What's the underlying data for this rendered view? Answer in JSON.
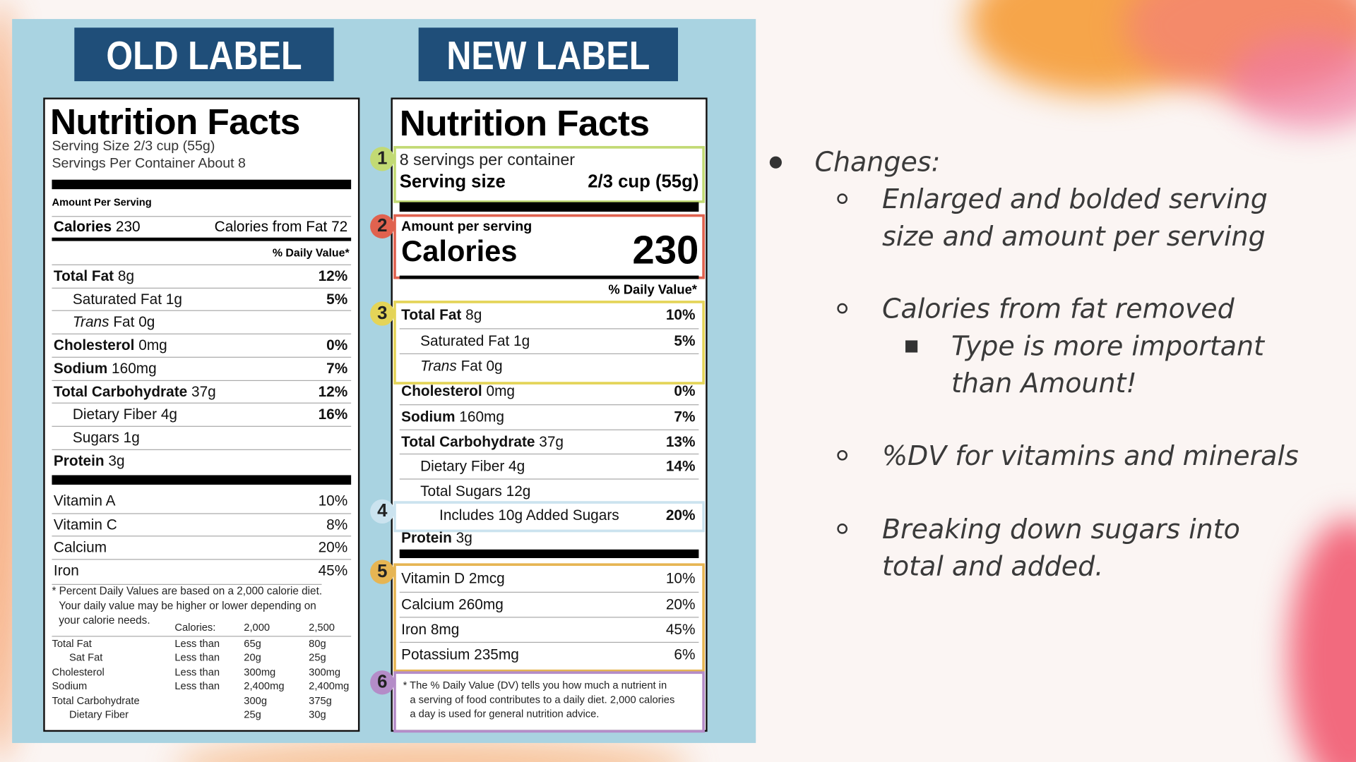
{
  "old_label": {
    "heading": "OLD LABEL",
    "title": "Nutrition Facts",
    "serving_size": "Serving Size 2/3 cup (55g)",
    "servings": "Servings Per Container About 8",
    "amount_per_serving": "Amount Per Serving",
    "calories_name": "Calories",
    "calories_value": "230",
    "calories_from_fat": "Calories from Fat 72",
    "dv_header": "% Daily Value*",
    "rows": [
      {
        "name": "Total Fat",
        "amount": "8g",
        "dv": "12%",
        "style": "bold"
      },
      {
        "name": "Saturated Fat",
        "amount": "1g",
        "dv": "5%",
        "style": "indent"
      },
      {
        "italic": "Trans",
        "name": "Fat",
        "amount": "0g",
        "style": "indent"
      },
      {
        "name": "Cholesterol",
        "amount": "0mg",
        "dv": "0%",
        "style": "bold"
      },
      {
        "name": "Sodium",
        "amount": "160mg",
        "dv": "7%",
        "style": "bold"
      },
      {
        "name": "Total Carbohydrate",
        "amount": "37g",
        "dv": "12%",
        "style": "bold"
      },
      {
        "name": "Dietary Fiber",
        "amount": "4g",
        "dv": "16%",
        "style": "indent"
      },
      {
        "name": "Sugars",
        "amount": "1g",
        "style": "indent"
      },
      {
        "name": "Protein",
        "amount": "3g",
        "style": "bold"
      }
    ],
    "vitamins": [
      {
        "name": "Vitamin A",
        "dv": "10%",
        "style": "plain"
      },
      {
        "name": "Vitamin C",
        "dv": "8%",
        "style": "plain"
      },
      {
        "name": "Calcium",
        "dv": "20%",
        "style": "plain"
      },
      {
        "name": "Iron",
        "dv": "45%",
        "style": "plain"
      }
    ],
    "footnote": [
      "* Percent Daily Values are based on a 2,000 calorie diet.",
      "Your daily value may be higher or lower depending on",
      "your calorie needs."
    ],
    "table": {
      "header": [
        "Calories:",
        "2,000",
        "2,500"
      ],
      "rows": [
        {
          "name": "Total Fat",
          "limit": "Less than",
          "v2000": "65g",
          "v2500": "80g"
        },
        {
          "name": "Sat Fat",
          "limit": "Less than",
          "v2000": "20g",
          "v2500": "25g",
          "indent": true
        },
        {
          "name": "Cholesterol",
          "limit": "Less than",
          "v2000": "300mg",
          "v2500": "300mg"
        },
        {
          "name": "Sodium",
          "limit": "Less than",
          "v2000": "2,400mg",
          "v2500": "2,400mg"
        },
        {
          "name": "Total Carbohydrate",
          "v2000": "300g",
          "v2500": "375g"
        },
        {
          "name": "Dietary Fiber",
          "v2000": "25g",
          "v2500": "30g",
          "indent": true
        }
      ]
    }
  },
  "new_label": {
    "heading": "NEW LABEL",
    "title": "Nutrition Facts",
    "dv_header": "% Daily Value*",
    "sections": [
      {
        "badge": "1",
        "color": "#c2da74",
        "servings": "8 servings per container",
        "serving_size_label": "Serving size",
        "serving_size_value": "2/3 cup (55g)"
      },
      {
        "badge": "2",
        "color": "#e0624f",
        "amount_per_serving": "Amount per serving",
        "calories_name": "Calories",
        "calories_value": "230"
      },
      {
        "badge": "3",
        "color": "#e4d458",
        "rows": [
          {
            "name": "Total Fat",
            "amount": "8g",
            "dv": "10%",
            "style": "bold"
          },
          {
            "name": "Saturated Fat",
            "amount": "1g",
            "dv": "5%",
            "style": "indent"
          },
          {
            "italic": "Trans",
            "name": "Fat",
            "amount": "0g",
            "style": "indent"
          }
        ]
      },
      {
        "badge": "4",
        "color": "#cbe3ef",
        "rows": [
          {
            "name": "Includes 10g Added Sugars",
            "dv": "20%",
            "style": "indent2"
          }
        ]
      },
      {
        "badge": "5",
        "color": "#e6b553",
        "rows": [
          {
            "name": "Vitamin D",
            "amount": "2mcg",
            "dv": "10%",
            "style": "plain"
          },
          {
            "name": "Calcium",
            "amount": "260mg",
            "dv": "20%",
            "style": "plain"
          },
          {
            "name": "Iron",
            "amount": "8mg",
            "dv": "45%",
            "style": "plain"
          },
          {
            "name": "Potassium",
            "amount": "235mg",
            "dv": "6%",
            "style": "plain"
          }
        ]
      },
      {
        "badge": "6",
        "color": "#b48cc8",
        "footnote": [
          "* The % Daily Value (DV) tells you how much a nutrient in",
          "a serving of food contributes to a daily diet. 2,000 calories",
          "a day is used for general nutrition advice."
        ]
      }
    ],
    "rows": [
      {
        "name": "Cholesterol",
        "amount": "0mg",
        "dv": "0%",
        "style": "bold"
      },
      {
        "name": "Sodium",
        "amount": "160mg",
        "dv": "7%",
        "style": "bold"
      },
      {
        "name": "Total Carbohydrate",
        "amount": "37g",
        "dv": "13%",
        "style": "bold"
      },
      {
        "name": "Dietary Fiber",
        "amount": "4g",
        "dv": "14%",
        "style": "indent"
      },
      {
        "name": "Total Sugars",
        "amount": "12g",
        "style": "indent"
      }
    ],
    "protein": {
      "name": "Protein",
      "amount": "3g",
      "style": "bold"
    }
  },
  "bullets": [
    {
      "level": 0,
      "lines": [
        "Changes:"
      ]
    },
    {
      "level": 1,
      "lines": [
        "Enlarged and bolded serving",
        "size and amount per serving"
      ]
    },
    {
      "level": 1,
      "lines": [
        "Calories from fat removed"
      ]
    },
    {
      "level": 2,
      "lines": [
        "Type is more important",
        "than Amount!"
      ]
    },
    {
      "level": 1,
      "lines": [
        "%DV for vitamins and minerals"
      ]
    },
    {
      "level": 1,
      "lines": [
        "Breaking down sugars into",
        "total and added."
      ]
    }
  ]
}
